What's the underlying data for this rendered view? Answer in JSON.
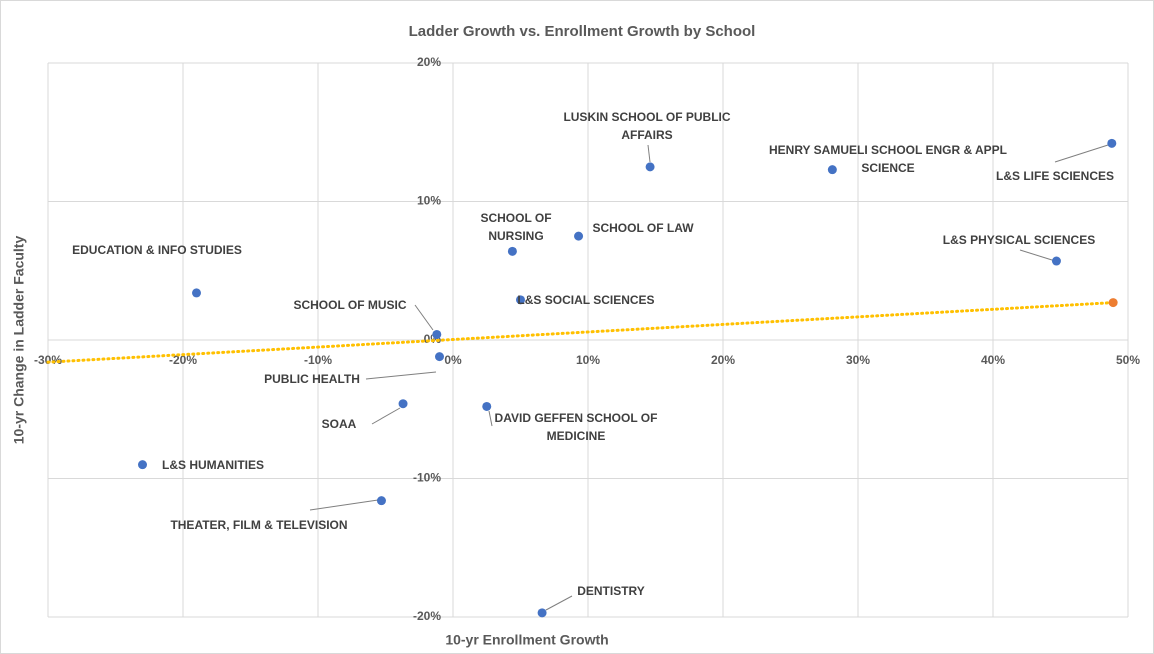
{
  "chart_data": {
    "type": "scatter",
    "title": "Ladder Growth vs. Enrollment Growth by School",
    "x_label": "10-yr Enrollment Growth",
    "y_label": "10-yr Change in Ladder Faculty",
    "xlim": [
      -30,
      50
    ],
    "ylim": [
      -20,
      20
    ],
    "xticks": [
      {
        "value": -30,
        "label": "-30%"
      },
      {
        "value": -20,
        "label": "-20%"
      },
      {
        "value": -10,
        "label": "-10%"
      },
      {
        "value": 0,
        "label": "0%"
      },
      {
        "value": 10,
        "label": "10%"
      },
      {
        "value": 20,
        "label": "20%"
      },
      {
        "value": 30,
        "label": "30%"
      },
      {
        "value": 40,
        "label": "40%"
      },
      {
        "value": 50,
        "label": "50%"
      }
    ],
    "yticks": [
      {
        "value": -20,
        "label": "-20%"
      },
      {
        "value": -10,
        "label": "-10%"
      },
      {
        "value": 0,
        "label": "0%"
      },
      {
        "value": 10,
        "label": "10%"
      },
      {
        "value": 20,
        "label": "20%"
      }
    ],
    "grid": true,
    "series": [
      {
        "color": "#4472c4",
        "labels": [
          "EDUCATION & INFO STUDIES",
          "SCHOOL OF MUSIC",
          "PUBLIC HEALTH",
          "SOAA",
          "L&S HUMANITIES",
          "THEATER, FILM & TELEVISION",
          "DAVID GEFFEN SCHOOL OF MEDICINE",
          "DENTISTRY",
          "SCHOOL OF NURSING",
          "SCHOOL OF LAW",
          "L&S SOCIAL SCIENCES",
          "LUSKIN SCHOOL OF PUBLIC AFFAIRS",
          "HENRY SAMUELI SCHOOL ENGR & APPL SCIENCE",
          "L&S LIFE SCIENCES",
          "L&S PHYSICAL SCIENCES"
        ],
        "x": [
          -19.0,
          -1.2,
          -1.0,
          -3.7,
          -23.0,
          -5.3,
          2.5,
          6.6,
          4.4,
          9.3,
          5.0,
          14.6,
          28.1,
          48.8,
          44.7
        ],
        "y": [
          3.4,
          0.4,
          -1.2,
          -4.6,
          -9.0,
          -11.6,
          -4.8,
          -19.7,
          6.4,
          7.5,
          2.9,
          12.5,
          12.3,
          14.2,
          5.7
        ]
      },
      {
        "color": "#ed7d31",
        "x": [
          48.9
        ],
        "y": [
          2.7
        ]
      }
    ],
    "trendline": {
      "color": "#ffc000",
      "x": [
        -30,
        48.9
      ],
      "y": [
        -1.6,
        2.7
      ]
    }
  }
}
